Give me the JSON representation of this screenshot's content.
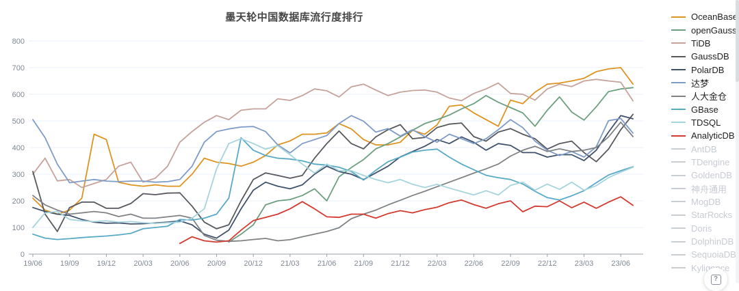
{
  "title": "墨天轮中国数据库流行度排行",
  "help": {
    "icon_glyph": "?"
  },
  "axis": {
    "label_color": "#7f8793",
    "grid_color": "#e9eff7",
    "axis_color": "#9aa0a6"
  },
  "legend": {
    "items": [
      {
        "label": "OceanBase",
        "color": "#dd9320",
        "active": true
      },
      {
        "label": "openGauss",
        "color": "#6c9f80",
        "active": true
      },
      {
        "label": "TiDB",
        "color": "#c5a29a",
        "active": true
      },
      {
        "label": "GaussDB",
        "color": "#56585d",
        "active": true
      },
      {
        "label": "PolarDB",
        "color": "#40526b",
        "active": true
      },
      {
        "label": "达梦",
        "color": "#7e9bc8",
        "active": true
      },
      {
        "label": "人大金仓",
        "color": "#7f8285",
        "active": true
      },
      {
        "label": "GBase",
        "color": "#58a9c5",
        "active": true
      },
      {
        "label": "TDSQL",
        "color": "#a6d4dd",
        "active": true
      },
      {
        "label": "AnalyticDB",
        "color": "#d23a30",
        "active": true
      },
      {
        "label": "AntDB",
        "color": "#c9cdd4",
        "active": false
      },
      {
        "label": "TDengine",
        "color": "#c9cdd4",
        "active": false
      },
      {
        "label": "GoldenDB",
        "color": "#c9cdd4",
        "active": false
      },
      {
        "label": "神舟通用",
        "color": "#c9cdd4",
        "active": false
      },
      {
        "label": "MogDB",
        "color": "#c9cdd4",
        "active": false
      },
      {
        "label": "StarRocks",
        "color": "#c9cdd4",
        "active": false
      },
      {
        "label": "Doris",
        "color": "#c9cdd4",
        "active": false
      },
      {
        "label": "DolphinDB",
        "color": "#c9cdd4",
        "active": false
      },
      {
        "label": "SequoiaDB",
        "color": "#c9cdd4",
        "active": false
      },
      {
        "label": "Kyligence",
        "color": "#c9cdd4",
        "active": false
      }
    ]
  },
  "chart_data": {
    "type": "line",
    "x_start": "2019/06",
    "x_end": "2023/07",
    "x_interval": "month",
    "n_points": 50,
    "x_tick_labels": [
      "19/06",
      "19/09",
      "19/12",
      "20/03",
      "20/06",
      "20/09",
      "20/12",
      "21/03",
      "21/06",
      "21/09",
      "21/12",
      "22/03",
      "22/06",
      "22/09",
      "22/12",
      "23/03",
      "23/06"
    ],
    "x_tick_every": 3,
    "y_ticks": [
      800,
      700,
      600,
      500,
      400,
      300,
      200,
      100,
      0
    ],
    "ylim": [
      0,
      800
    ],
    "grid": true,
    "legend_position": "right",
    "series": [
      {
        "name": "OceanBase",
        "color": "#dd9320",
        "values": [
          210,
          165,
          150,
          165,
          210,
          450,
          430,
          270,
          260,
          255,
          260,
          255,
          255,
          300,
          360,
          345,
          340,
          330,
          345,
          370,
          410,
          425,
          450,
          450,
          455,
          490,
          470,
          430,
          410,
          410,
          420,
          465,
          450,
          485,
          555,
          560,
          530,
          505,
          480,
          578,
          565,
          608,
          638,
          642,
          650,
          660,
          685,
          695,
          700,
          638
        ]
      },
      {
        "name": "openGauss",
        "color": "#6c9f80",
        "values": [
          null,
          null,
          null,
          null,
          null,
          null,
          null,
          null,
          null,
          null,
          null,
          null,
          null,
          null,
          null,
          null,
          45,
          75,
          110,
          185,
          200,
          205,
          220,
          245,
          200,
          290,
          325,
          355,
          395,
          415,
          440,
          465,
          490,
          505,
          522,
          545,
          565,
          595,
          570,
          550,
          530,
          480,
          540,
          590,
          533,
          503,
          553,
          610,
          620,
          625
        ]
      },
      {
        "name": "TiDB",
        "color": "#c5a29a",
        "values": [
          300,
          360,
          275,
          280,
          250,
          265,
          280,
          330,
          345,
          270,
          285,
          330,
          420,
          460,
          495,
          520,
          505,
          540,
          545,
          545,
          583,
          577,
          595,
          620,
          613,
          590,
          628,
          638,
          616,
          595,
          608,
          614,
          616,
          608,
          586,
          576,
          603,
          620,
          642,
          603,
          600,
          578,
          620,
          638,
          629,
          650,
          656,
          650,
          645,
          575
        ]
      },
      {
        "name": "GaussDB",
        "color": "#56585d",
        "values": [
          310,
          150,
          85,
          175,
          195,
          195,
          172,
          172,
          190,
          227,
          223,
          229,
          230,
          180,
          120,
          95,
          110,
          200,
          280,
          305,
          295,
          285,
          295,
          360,
          415,
          462,
          415,
          395,
          440,
          467,
          486,
          433,
          438,
          475,
          488,
          492,
          441,
          424,
          458,
          471,
          450,
          433,
          394,
          415,
          424,
          381,
          347,
          394,
          467,
          525
        ]
      },
      {
        "name": "PolarDB",
        "color": "#40526b",
        "values": [
          175,
          160,
          150,
          145,
          130,
          120,
          116,
          117,
          113,
          114,
          117,
          120,
          125,
          110,
          75,
          60,
          90,
          170,
          240,
          270,
          255,
          245,
          260,
          300,
          330,
          310,
          300,
          280,
          305,
          330,
          365,
          385,
          405,
          430,
          415,
          440,
          420,
          390,
          415,
          408,
          381,
          381,
          364,
          373,
          373,
          351,
          390,
          458,
          520,
          508
        ]
      },
      {
        "name": "达梦",
        "color": "#7e9bc8",
        "values": [
          505,
          437,
          338,
          268,
          274,
          280,
          274,
          272,
          274,
          274,
          270,
          272,
          280,
          330,
          420,
          460,
          470,
          477,
          479,
          460,
          410,
          380,
          415,
          430,
          445,
          490,
          520,
          499,
          458,
          471,
          443,
          467,
          441,
          420,
          450,
          433,
          415,
          433,
          467,
          505,
          475,
          424,
          390,
          370,
          385,
          364,
          403,
          501,
          509,
          454
        ]
      },
      {
        "name": "人大金仓",
        "color": "#7f8285",
        "values": [
          220,
          185,
          165,
          150,
          155,
          160,
          155,
          141,
          150,
          135,
          135,
          140,
          145,
          135,
          70,
          52,
          48,
          50,
          55,
          59,
          50,
          54,
          65,
          75,
          85,
          99,
          133,
          150,
          165,
          185,
          202,
          220,
          236,
          253,
          270,
          287,
          304,
          320,
          338,
          368,
          390,
          405,
          385,
          395,
          385,
          390,
          400,
          440,
          495,
          441
        ]
      },
      {
        "name": "GBase",
        "color": "#58a9c5",
        "values": [
          75,
          60,
          55,
          58,
          62,
          65,
          68,
          72,
          78,
          95,
          100,
          105,
          130,
          128,
          135,
          150,
          210,
          437,
          390,
          370,
          360,
          357,
          350,
          338,
          334,
          326,
          310,
          278,
          315,
          347,
          364,
          383,
          390,
          394,
          364,
          338,
          317,
          296,
          287,
          280,
          263,
          236,
          212,
          203,
          219,
          238,
          268,
          297,
          313,
          328
        ]
      },
      {
        "name": "TDSQL",
        "color": "#a6d4dd",
        "values": [
          100,
          155,
          160,
          130,
          125,
          122,
          125,
          120,
          122,
          118,
          115,
          118,
          120,
          135,
          170,
          320,
          415,
          433,
          415,
          394,
          407,
          373,
          338,
          304,
          338,
          313,
          313,
          295,
          280,
          268,
          280,
          262,
          250,
          262,
          248,
          235,
          222,
          238,
          222,
          258,
          270,
          240,
          263,
          243,
          270,
          240,
          257,
          287,
          308,
          326
        ]
      },
      {
        "name": "AnalyticDB",
        "color": "#d23a30",
        "values": [
          null,
          null,
          null,
          null,
          null,
          null,
          null,
          null,
          null,
          null,
          null,
          null,
          40,
          65,
          50,
          45,
          50,
          90,
          126,
          138,
          150,
          170,
          197,
          170,
          140,
          138,
          150,
          150,
          135,
          152,
          163,
          155,
          167,
          176,
          193,
          203,
          186,
          172,
          189,
          200,
          159,
          180,
          178,
          200,
          174,
          195,
          172,
          195,
          215,
          183
        ]
      }
    ]
  }
}
